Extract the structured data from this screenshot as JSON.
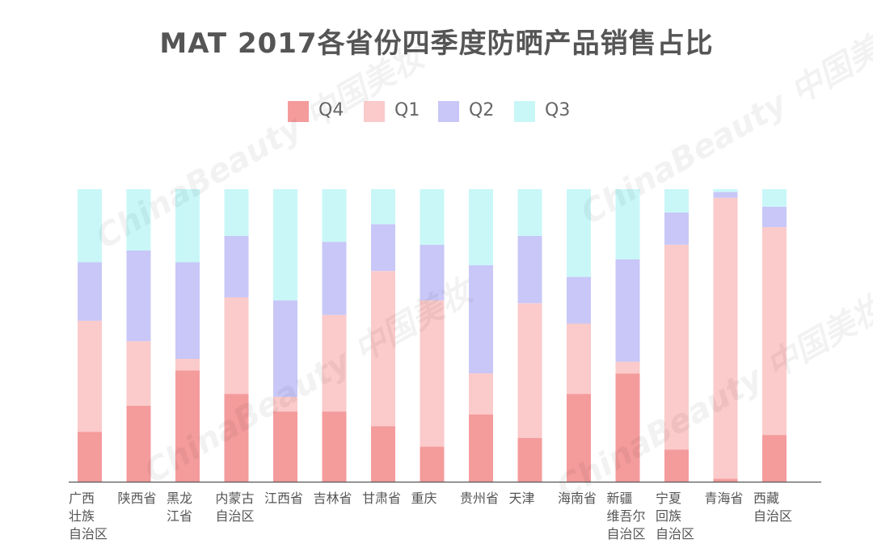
{
  "chart_data": {
    "type": "bar",
    "stacked": true,
    "normalized": true,
    "title": "MAT 2017各省份四季度防晒产品销售占比",
    "categories": [
      "广西\n壮族\n自治区",
      "陕西省",
      "黑龙\n江省",
      "内蒙古\n自治区",
      "江西省",
      "吉林省",
      "甘肃省",
      "重庆",
      "贵州省",
      "天津",
      "海南省",
      "新疆\n维吾尔\n自治区",
      "宁夏\n回族\n自治区",
      "青海省",
      "西藏\n自治区"
    ],
    "series": [
      {
        "name": "Q4",
        "color": "#f49b9c",
        "values": [
          0.17,
          0.26,
          0.38,
          0.3,
          0.24,
          0.24,
          0.19,
          0.12,
          0.23,
          0.15,
          0.3,
          0.37,
          0.11,
          0.01,
          0.16
        ]
      },
      {
        "name": "Q1",
        "color": "#fbcaca",
        "values": [
          0.38,
          0.22,
          0.04,
          0.33,
          0.05,
          0.33,
          0.53,
          0.5,
          0.14,
          0.46,
          0.24,
          0.04,
          0.7,
          0.96,
          0.71
        ]
      },
      {
        "name": "Q2",
        "color": "#c8c7f7",
        "values": [
          0.2,
          0.31,
          0.33,
          0.21,
          0.33,
          0.25,
          0.16,
          0.19,
          0.37,
          0.23,
          0.16,
          0.35,
          0.11,
          0.02,
          0.07
        ]
      },
      {
        "name": "Q3",
        "color": "#c9f7f8",
        "values": [
          0.25,
          0.21,
          0.25,
          0.16,
          0.38,
          0.18,
          0.12,
          0.19,
          0.26,
          0.16,
          0.3,
          0.24,
          0.08,
          0.01,
          0.06
        ]
      }
    ],
    "legend_order": [
      "Q4",
      "Q1",
      "Q2",
      "Q3"
    ],
    "legend_position": "top",
    "ylim": [
      0,
      1
    ],
    "grid": false
  },
  "watermark": "ChinaBeauty 中国美妆"
}
